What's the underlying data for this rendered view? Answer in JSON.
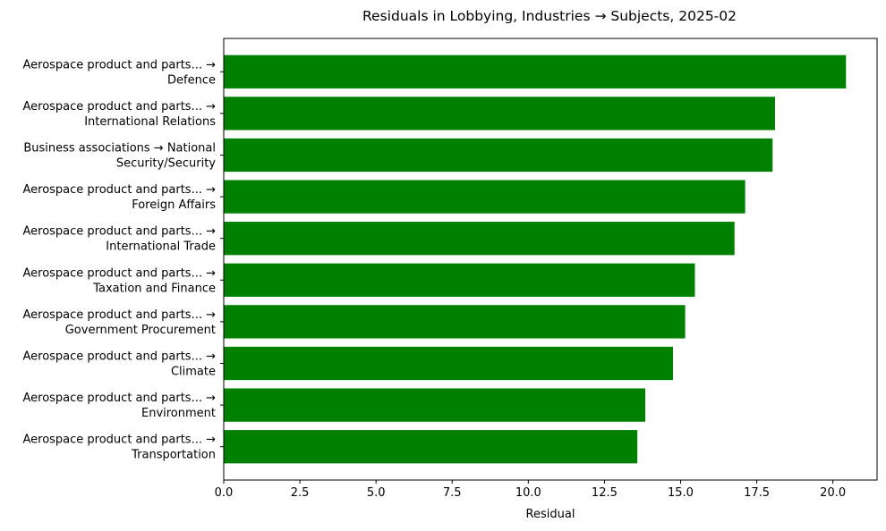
{
  "chart_data": {
    "type": "bar",
    "orientation": "horizontal",
    "title": "Residuals in Lobbying, Industries → Subjects, 2025-02",
    "xlabel": "Residual",
    "ylabel": "",
    "xlim": [
      0,
      21.45
    ],
    "xticks": [
      "0.0",
      "2.5",
      "5.0",
      "7.5",
      "10.0",
      "12.5",
      "15.0",
      "17.5",
      "20.0"
    ],
    "grid": false,
    "bar_color": "#008000",
    "categories": [
      [
        "Aerospace product and parts... →",
        "Defence"
      ],
      [
        "Aerospace product and parts... →",
        "International Relations"
      ],
      [
        "Business associations → National",
        "Security/Security"
      ],
      [
        "Aerospace product and parts... →",
        "Foreign Affairs"
      ],
      [
        "Aerospace product and parts... →",
        "International Trade"
      ],
      [
        "Aerospace product and parts... →",
        "Taxation and Finance"
      ],
      [
        "Aerospace product and parts... →",
        "Government Procurement"
      ],
      [
        "Aerospace product and parts... →",
        "Climate"
      ],
      [
        "Aerospace product and parts... →",
        "Environment"
      ],
      [
        "Aerospace product and parts... →",
        "Transportation"
      ]
    ],
    "values": [
      20.43,
      18.1,
      18.02,
      17.12,
      16.77,
      15.47,
      15.15,
      14.75,
      13.84,
      13.58
    ]
  }
}
